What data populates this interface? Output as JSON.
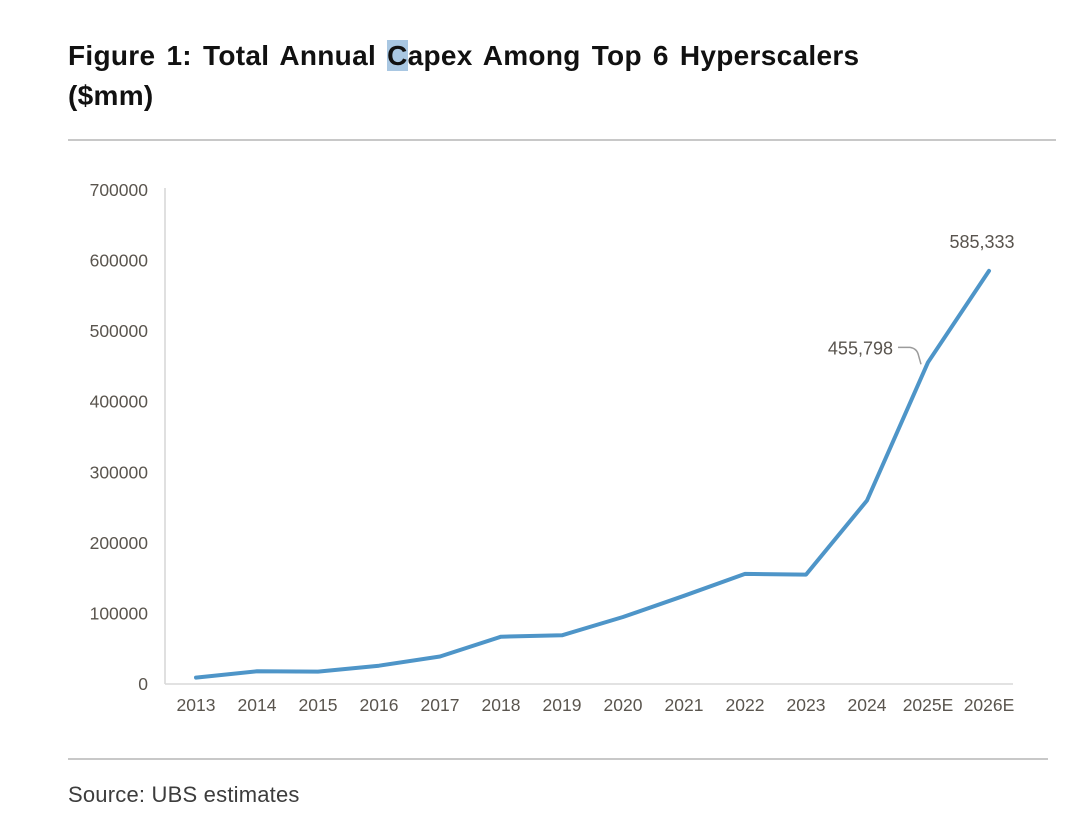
{
  "figure": {
    "title_prefix": "Figure 1: Total Annual ",
    "title_highlight": "C",
    "title_suffix": "apex Among Top 6 Hyperscalers",
    "title_line2": "($mm)",
    "highlight_color": "#a9c7e2",
    "source_text": "Source: UBS estimates"
  },
  "chart_data": {
    "type": "line",
    "title": "Total Annual Capex Among Top 6 Hyperscalers ($mm)",
    "xlabel": "",
    "ylabel": "",
    "categories": [
      "2013",
      "2014",
      "2015",
      "2016",
      "2017",
      "2018",
      "2019",
      "2020",
      "2021",
      "2022",
      "2023",
      "2024",
      "2025E",
      "2026E"
    ],
    "values": [
      9000,
      18000,
      17500,
      26000,
      39000,
      67000,
      69000,
      95000,
      125000,
      156000,
      155000,
      260000,
      455798,
      585333
    ],
    "ylim": [
      0,
      700000
    ],
    "yticks": [
      0,
      100000,
      200000,
      300000,
      400000,
      500000,
      600000,
      700000
    ],
    "ytick_labels": [
      "0",
      "100000",
      "200000",
      "300000",
      "400000",
      "500000",
      "600000",
      "700000"
    ],
    "grid": false,
    "legend": "none",
    "line_color": "#4e95c8",
    "axis_color": "#d9d9d9",
    "tick_label_color": "#5a554e",
    "data_label_color": "#59544e",
    "leader_color": "#9b9b9b",
    "annotations": [
      {
        "index": 12,
        "label": "455,798",
        "placement": "left",
        "leader": true
      },
      {
        "index": 13,
        "label": "585,333",
        "placement": "above",
        "leader": false
      }
    ]
  }
}
